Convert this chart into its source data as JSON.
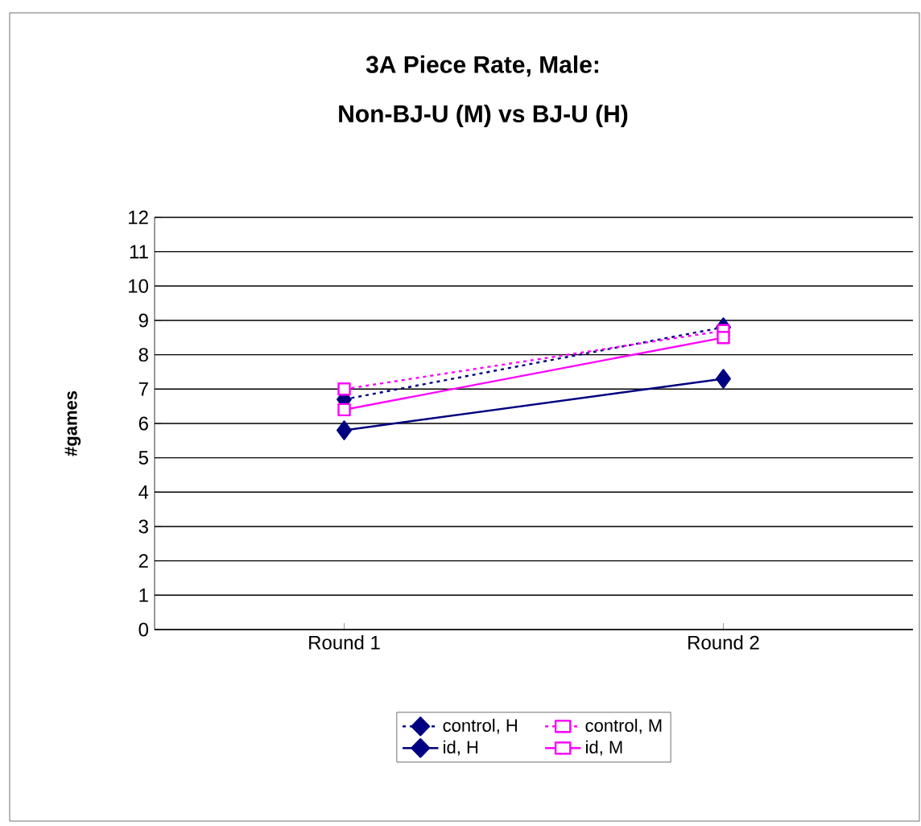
{
  "chart_data": {
    "type": "line",
    "title": "3A    Piece Rate, Male:",
    "subtitle": "Non-BJ-U (M) vs BJ-U (H)",
    "ylabel": "#games",
    "categories": [
      "Round 1",
      "Round 2"
    ],
    "series": [
      {
        "name": "control, H",
        "color": "#000080",
        "values": [
          6.7,
          8.8
        ],
        "marker": "diamond",
        "line_style": "dashed"
      },
      {
        "name": "control, M",
        "color": "#ff00ff",
        "values": [
          7.0,
          8.7
        ],
        "marker": "square",
        "line_style": "dashed"
      },
      {
        "name": "id, H",
        "color": "#000080",
        "values": [
          5.8,
          7.3
        ],
        "marker": "diamond",
        "line_style": "solid"
      },
      {
        "name": "id, M",
        "color": "#ff00ff",
        "values": [
          6.4,
          8.5
        ],
        "marker": "square",
        "line_style": "solid"
      }
    ],
    "ylim": [
      0,
      12
    ],
    "yticks": [
      0,
      1,
      2,
      3,
      4,
      5,
      6,
      7,
      8,
      9,
      10,
      11,
      12
    ],
    "grid": "y",
    "legend": "bottom"
  }
}
